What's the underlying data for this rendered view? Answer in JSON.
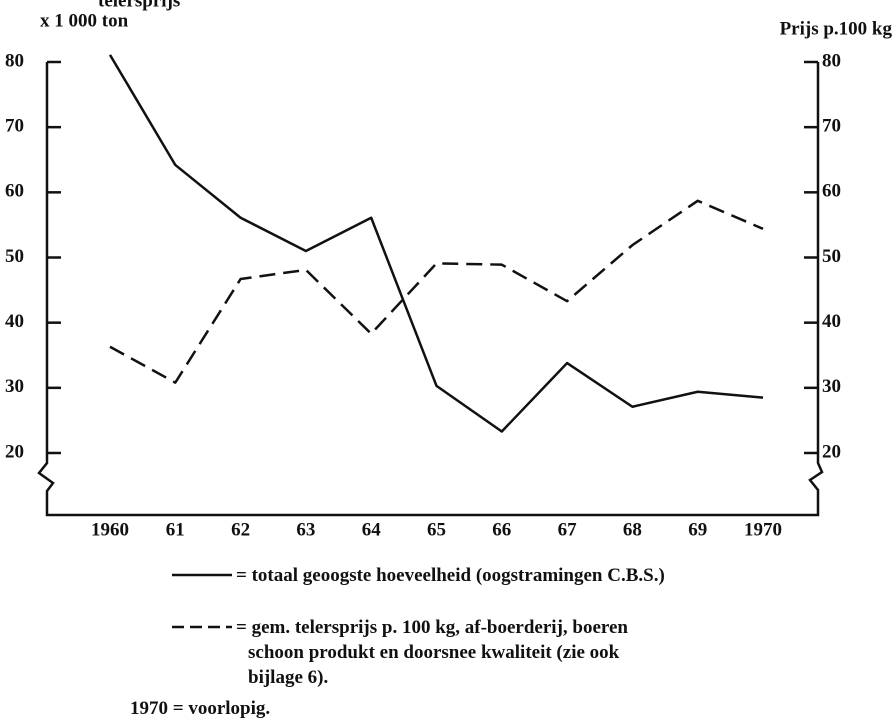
{
  "chart_data": {
    "type": "line",
    "title": "telersprijs",
    "y_label": "x 1 000 ton",
    "y2_label": "Prijs p.100 kg",
    "categories": [
      "1960",
      "61",
      "62",
      "63",
      "64",
      "65",
      "66",
      "67",
      "68",
      "69",
      "1970"
    ],
    "series": [
      {
        "name": "= totaal geoogste hoeveelheid (oogstramingen C.B.S.)",
        "color": "#111111",
        "dash": "solid",
        "axis": "y",
        "values": [
          81.1,
          64.2,
          56.1,
          51.0,
          56.1,
          30.3,
          23.3,
          33.8,
          27.1,
          29.4,
          28.5
        ]
      },
      {
        "name": "= gem. telersprijs p. 100 kg, af-boerderij, boeren schoon produkt en doorsnee kwaliteit (zie ook bijlage 6).",
        "color": "#111111",
        "dash": "dashed",
        "axis": "y2",
        "values": [
          36.3,
          30.8,
          46.7,
          48.1,
          38.3,
          49.1,
          48.9,
          43.3,
          51.9,
          58.7,
          54.4
        ]
      }
    ],
    "annotation": "1970 = voorlopig.",
    "ylim": [
      20,
      80
    ],
    "yticks": [
      20,
      30,
      40,
      50,
      60,
      70,
      80
    ],
    "y2lim": [
      20,
      80
    ],
    "y2ticks": [
      20,
      30,
      40,
      50,
      60,
      70,
      80
    ],
    "grid": false
  }
}
